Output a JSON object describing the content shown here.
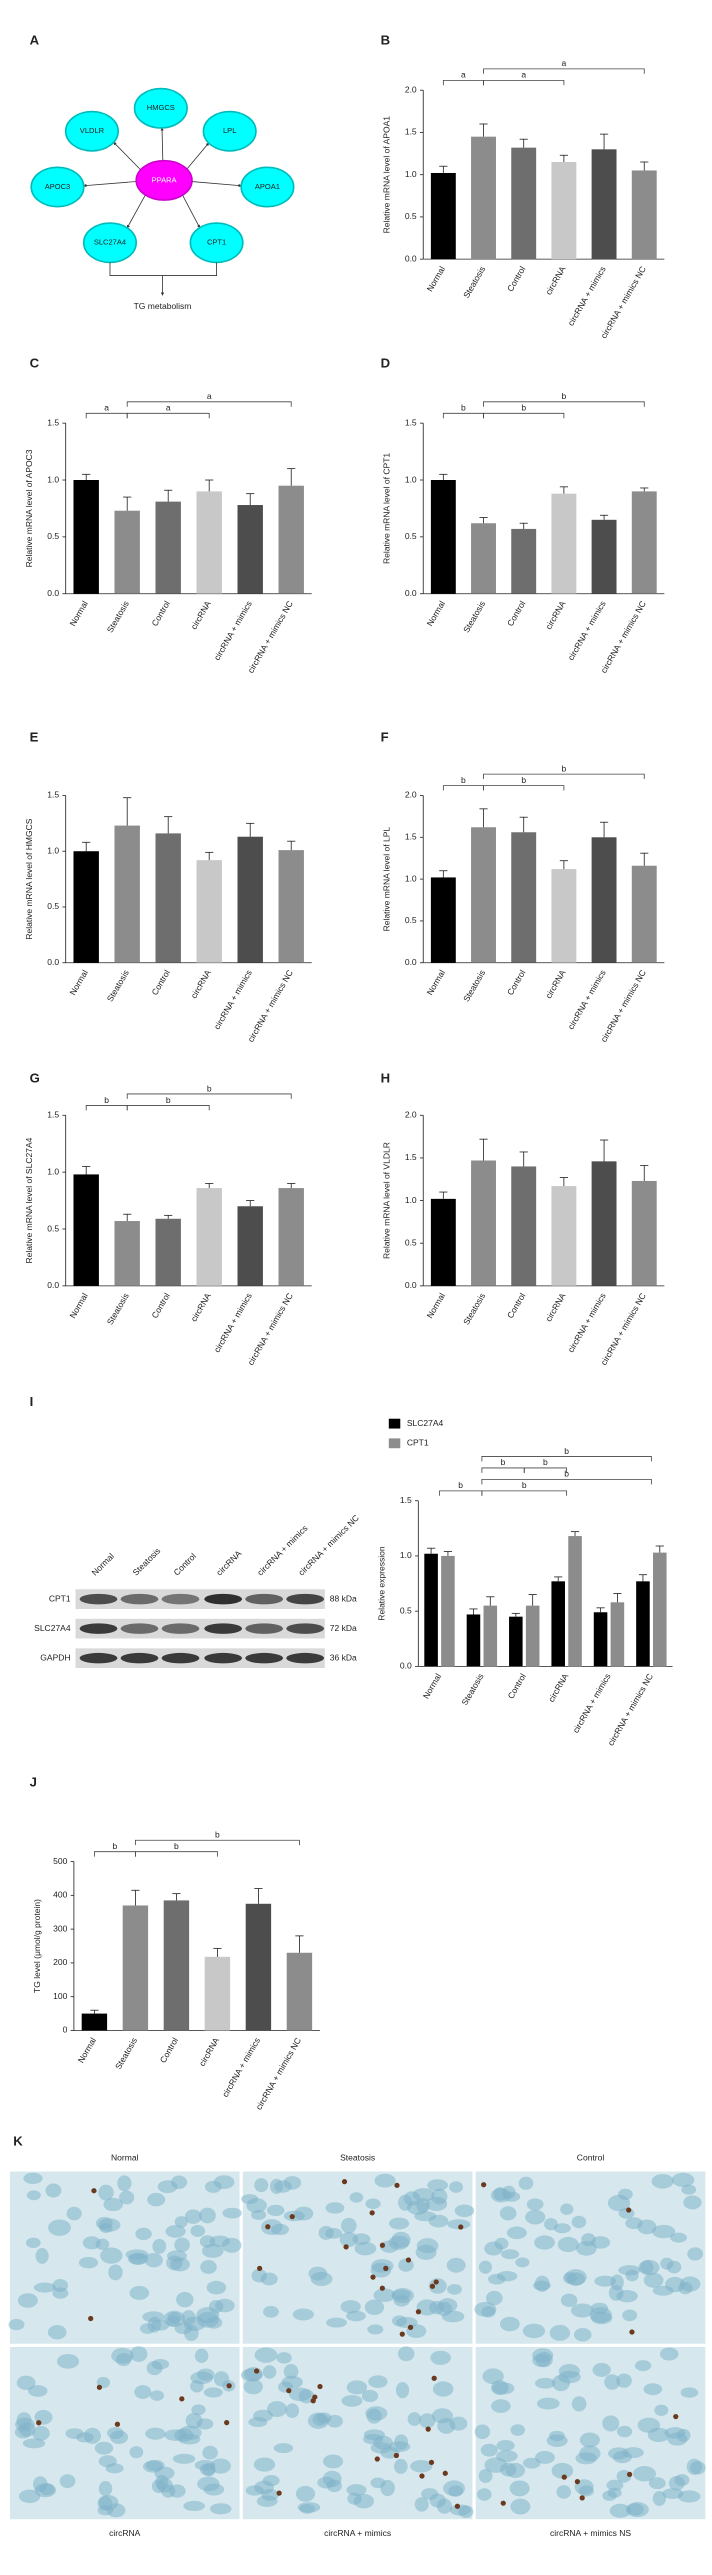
{
  "diagram": {
    "panel_label": "A",
    "center": "PPARA",
    "nodes": [
      "HMGCS",
      "LPL",
      "APOA1",
      "CPT1",
      "SLC27A4",
      "APOC3",
      "VLDLR"
    ],
    "caption": "TG metabolism"
  },
  "blot": {
    "lanes": [
      "Normal",
      "Steatosis",
      "Control",
      "circRNA",
      "circRNA + mimics",
      "circRNA + mimics NC"
    ],
    "proteins": [
      {
        "name": "CPT1",
        "size": "88 kDa"
      },
      {
        "name": "SLC27A4",
        "size": "72 kDa"
      },
      {
        "name": "GAPDH",
        "size": "36 kDa"
      }
    ]
  },
  "micrographs": {
    "panel_label": "K",
    "labels": [
      "Normal",
      "Steatosis",
      "Control",
      "circRNA",
      "circRNA + mimics",
      "circRNA + mimics NS"
    ]
  },
  "chart_data": [
    {
      "type": "bar",
      "panel_label": "B",
      "y_label": "Relative mRNA level of APOA1",
      "categories": [
        "Normal",
        "Steatosis",
        "Control",
        "circRNA",
        "circRNA + mimics",
        "circRNA + mimics NC"
      ],
      "values": [
        1.02,
        1.45,
        1.32,
        1.15,
        1.3,
        1.05
      ],
      "errors": [
        0.08,
        0.15,
        0.1,
        0.08,
        0.18,
        0.1
      ],
      "colors": [
        "#000000",
        "#8c8c8c",
        "#6e6e6e",
        "#c8c8c8",
        "#4d4d4d",
        "#8c8c8c"
      ],
      "ylim": [
        0,
        2
      ],
      "yticks": [
        {
          "value": 0,
          "label": "0.0"
        },
        {
          "value": 0.5,
          "label": "0.5"
        },
        {
          "value": 1,
          "label": "1.0"
        },
        {
          "value": 1.5,
          "label": "1.5"
        },
        {
          "value": 2,
          "label": "2.0"
        }
      ],
      "significance": [
        {
          "label": "a",
          "from": "Normal",
          "to": "Steatosis"
        },
        {
          "label": "a",
          "from": "Steatosis",
          "to": "circRNA"
        },
        {
          "label": "a",
          "from": "Steatosis",
          "to": "circRNA + mimics NC"
        }
      ]
    },
    {
      "type": "bar",
      "panel_label": "C",
      "y_label": "Relative mRNA level of APOC3",
      "categories": [
        "Normal",
        "Steatosis",
        "Control",
        "circRNA",
        "circRNA + mimics",
        "circRNA + mimics NC"
      ],
      "values": [
        1.0,
        0.73,
        0.81,
        0.9,
        0.78,
        0.95
      ],
      "errors": [
        0.05,
        0.12,
        0.1,
        0.1,
        0.1,
        0.15
      ],
      "colors": [
        "#000000",
        "#8c8c8c",
        "#6e6e6e",
        "#c8c8c8",
        "#4d4d4d",
        "#8c8c8c"
      ],
      "ylim": [
        0,
        1.5
      ],
      "yticks": [
        {
          "value": 0,
          "label": "0.0"
        },
        {
          "value": 0.5,
          "label": "0.5"
        },
        {
          "value": 1,
          "label": "1.0"
        },
        {
          "value": 1.5,
          "label": "1.5"
        }
      ],
      "significance": [
        {
          "label": "a",
          "from": "Normal",
          "to": "Steatosis"
        },
        {
          "label": "a",
          "from": "Steatosis",
          "to": "circRNA"
        },
        {
          "label": "a",
          "from": "Steatosis",
          "to": "circRNA + mimics NC"
        }
      ]
    },
    {
      "type": "bar",
      "panel_label": "D",
      "y_label": "Relative mRNA level of CPT1",
      "categories": [
        "Normal",
        "Steatosis",
        "Control",
        "circRNA",
        "circRNA + mimics",
        "circRNA + mimics NC"
      ],
      "values": [
        1.0,
        0.62,
        0.57,
        0.88,
        0.65,
        0.9
      ],
      "errors": [
        0.05,
        0.05,
        0.05,
        0.06,
        0.04,
        0.03
      ],
      "colors": [
        "#000000",
        "#8c8c8c",
        "#6e6e6e",
        "#c8c8c8",
        "#4d4d4d",
        "#8c8c8c"
      ],
      "ylim": [
        0,
        1.5
      ],
      "yticks": [
        {
          "value": 0,
          "label": "0.0"
        },
        {
          "value": 0.5,
          "label": "0.5"
        },
        {
          "value": 1,
          "label": "1.0"
        },
        {
          "value": 1.5,
          "label": "1.5"
        }
      ],
      "significance": [
        {
          "label": "b",
          "from": "Normal",
          "to": "Steatosis"
        },
        {
          "label": "b",
          "from": "Steatosis",
          "to": "circRNA"
        },
        {
          "label": "b",
          "from": "Steatosis",
          "to": "circRNA + mimics NC"
        }
      ]
    },
    {
      "type": "bar",
      "panel_label": "E",
      "y_label": "Relative mRNA level of HMGCS",
      "categories": [
        "Normal",
        "Steatosis",
        "Control",
        "circRNA",
        "circRNA + mimics",
        "circRNA + mimics NC"
      ],
      "values": [
        1.0,
        1.23,
        1.16,
        0.92,
        1.13,
        1.01
      ],
      "errors": [
        0.08,
        0.25,
        0.15,
        0.07,
        0.12,
        0.08
      ],
      "colors": [
        "#000000",
        "#8c8c8c",
        "#6e6e6e",
        "#c8c8c8",
        "#4d4d4d",
        "#8c8c8c"
      ],
      "ylim": [
        0,
        1.5
      ],
      "yticks": [
        {
          "value": 0,
          "label": "0.0"
        },
        {
          "value": 0.5,
          "label": "0.5"
        },
        {
          "value": 1,
          "label": "1.0"
        },
        {
          "value": 1.5,
          "label": "1.5"
        }
      ],
      "significance": []
    },
    {
      "type": "bar",
      "panel_label": "F",
      "y_label": "Relative mRNA level of LPL",
      "categories": [
        "Normal",
        "Steatosis",
        "Control",
        "circRNA",
        "circRNA + mimics",
        "circRNA + mimics NC"
      ],
      "values": [
        1.02,
        1.62,
        1.56,
        1.12,
        1.5,
        1.16
      ],
      "errors": [
        0.08,
        0.22,
        0.18,
        0.1,
        0.18,
        0.15
      ],
      "colors": [
        "#000000",
        "#8c8c8c",
        "#6e6e6e",
        "#c8c8c8",
        "#4d4d4d",
        "#8c8c8c"
      ],
      "ylim": [
        0,
        2
      ],
      "yticks": [
        {
          "value": 0,
          "label": "0.0"
        },
        {
          "value": 0.5,
          "label": "0.5"
        },
        {
          "value": 1,
          "label": "1.0"
        },
        {
          "value": 1.5,
          "label": "1.5"
        },
        {
          "value": 2,
          "label": "2.0"
        }
      ],
      "significance": [
        {
          "label": "b",
          "from": "Normal",
          "to": "Steatosis"
        },
        {
          "label": "b",
          "from": "Steatosis",
          "to": "circRNA"
        },
        {
          "label": "b",
          "from": "Steatosis",
          "to": "circRNA + mimics NC"
        }
      ]
    },
    {
      "type": "bar",
      "panel_label": "G",
      "y_label": "Relative mRNA level of SLC27A4",
      "categories": [
        "Normal",
        "Steatosis",
        "Control",
        "circRNA",
        "circRNA + mimics",
        "circRNA + mimics NC"
      ],
      "values": [
        0.98,
        0.57,
        0.59,
        0.86,
        0.7,
        0.86
      ],
      "errors": [
        0.07,
        0.06,
        0.03,
        0.04,
        0.05,
        0.04
      ],
      "colors": [
        "#000000",
        "#8c8c8c",
        "#6e6e6e",
        "#c8c8c8",
        "#4d4d4d",
        "#8c8c8c"
      ],
      "ylim": [
        0,
        1.5
      ],
      "yticks": [
        {
          "value": 0,
          "label": "0.0"
        },
        {
          "value": 0.5,
          "label": "0.5"
        },
        {
          "value": 1,
          "label": "1.0"
        },
        {
          "value": 1.5,
          "label": "1.5"
        }
      ],
      "significance": [
        {
          "label": "b",
          "from": "Normal",
          "to": "Steatosis"
        },
        {
          "label": "b",
          "from": "Steatosis",
          "to": "circRNA"
        },
        {
          "label": "b",
          "from": "Steatosis",
          "to": "circRNA + mimics NC"
        }
      ]
    },
    {
      "type": "bar",
      "panel_label": "H",
      "y_label": "Relative mRNA level of VLDLR",
      "categories": [
        "Normal",
        "Steatosis",
        "Control",
        "circRNA",
        "circRNA + mimics",
        "circRNA + mimics NC"
      ],
      "values": [
        1.02,
        1.47,
        1.4,
        1.17,
        1.46,
        1.23
      ],
      "errors": [
        0.08,
        0.25,
        0.17,
        0.1,
        0.25,
        0.18
      ],
      "colors": [
        "#000000",
        "#8c8c8c",
        "#6e6e6e",
        "#c8c8c8",
        "#4d4d4d",
        "#8c8c8c"
      ],
      "ylim": [
        0,
        2
      ],
      "yticks": [
        {
          "value": 0,
          "label": "0.0"
        },
        {
          "value": 0.5,
          "label": "0.5"
        },
        {
          "value": 1,
          "label": "1.0"
        },
        {
          "value": 1.5,
          "label": "1.5"
        },
        {
          "value": 2,
          "label": "2.0"
        }
      ],
      "significance": []
    },
    {
      "type": "grouped_bar",
      "panel_label": "I",
      "y_label": "Relative expression",
      "categories": [
        "Normal",
        "Steatosis",
        "Control",
        "circRNA",
        "circRNA + mimics",
        "circRNA + mimics NC"
      ],
      "series": [
        {
          "name": "SLC27A4",
          "color": "#000000",
          "values": [
            1.02,
            0.47,
            0.45,
            0.77,
            0.49,
            0.77
          ],
          "errors": [
            0.05,
            0.05,
            0.03,
            0.04,
            0.04,
            0.06
          ]
        },
        {
          "name": "CPT1",
          "color": "#8c8c8c",
          "values": [
            1.0,
            0.55,
            0.55,
            1.18,
            0.58,
            1.03
          ],
          "errors": [
            0.04,
            0.08,
            0.1,
            0.04,
            0.08,
            0.06
          ]
        }
      ],
      "legend": "top",
      "ylim": [
        0,
        1.5
      ],
      "yticks": [
        {
          "value": 0,
          "label": "0.0"
        },
        {
          "value": 0.5,
          "label": "0.5"
        },
        {
          "value": 1,
          "label": "1.0"
        },
        {
          "value": 1.5,
          "label": "1.5"
        }
      ],
      "significance": [
        {
          "label": "b",
          "from": "Normal",
          "to": "Steatosis"
        },
        {
          "label": "b",
          "from": "Steatosis",
          "to": "circRNA"
        },
        {
          "label": "b",
          "from": "Steatosis",
          "to": "circRNA + mimics NC"
        },
        {
          "label": "b",
          "from": "Steatosis",
          "to": "Control"
        },
        {
          "label": "b",
          "from": "Control",
          "to": "circRNA"
        },
        {
          "label": "b",
          "from": "Steatosis",
          "to": "circRNA + mimics NC"
        }
      ]
    },
    {
      "type": "bar",
      "panel_label": "J",
      "y_label": "TG level (μmol/g protein)",
      "categories": [
        "Normal",
        "Steatosis",
        "Control",
        "circRNA",
        "circRNA + mimics",
        "circRNA + mimics NC"
      ],
      "values": [
        50,
        370,
        385,
        218,
        375,
        230
      ],
      "errors": [
        10,
        45,
        20,
        25,
        45,
        50
      ],
      "colors": [
        "#000000",
        "#8c8c8c",
        "#6e6e6e",
        "#c8c8c8",
        "#4d4d4d",
        "#8c8c8c"
      ],
      "ylim": [
        0,
        500
      ],
      "yticks": [
        0,
        100,
        200,
        300,
        400,
        500
      ],
      "significance": [
        {
          "label": "b",
          "from": "Normal",
          "to": "Steatosis"
        },
        {
          "label": "b",
          "from": "Steatosis",
          "to": "circRNA"
        },
        {
          "label": "b",
          "from": "Steatosis",
          "to": "circRNA + mimics NC"
        }
      ]
    }
  ]
}
